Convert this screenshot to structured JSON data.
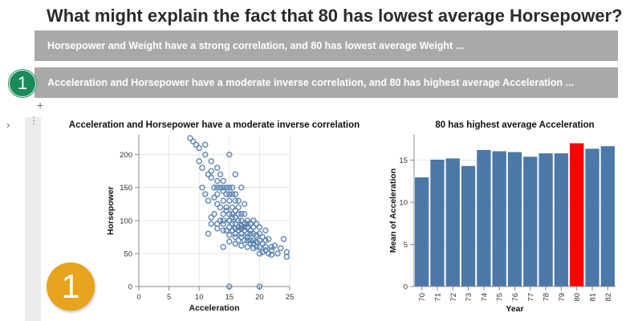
{
  "question": "What might explain the fact that 80 has lowest average Horsepower?",
  "explanations": [
    {
      "label": "Horsepower and Weight have a strong correlation, and 80 has lowest average Weight ..."
    },
    {
      "label": "Acceleration and Horsepower have a moderate inverse correlation, and 80 has highest average Acceleration ..."
    }
  ],
  "step_badge_small": "1",
  "step_badge_big": "1",
  "add_button": "+",
  "chevron": "›",
  "cell_menu": "⋮",
  "colors": {
    "mark": "#4c78a8",
    "highlight": "#ff0000",
    "explanation_bg": "#a9a9a9",
    "badge_green": "#1a8a5a",
    "badge_orange": "#e8a41c"
  },
  "chart_data": [
    {
      "type": "scatter",
      "title": "Acceleration and Horsepower have a moderate inverse correlation",
      "xlabel": "Acceleration",
      "ylabel": "Horsepower",
      "xlim": [
        0,
        25
      ],
      "ylim": [
        0,
        230
      ],
      "x_ticks": [
        0,
        5,
        10,
        15,
        20,
        25
      ],
      "y_ticks": [
        0,
        50,
        100,
        150,
        200
      ],
      "grid": true,
      "points": [
        [
          8.5,
          225
        ],
        [
          9,
          220
        ],
        [
          9.5,
          215
        ],
        [
          10,
          210
        ],
        [
          10,
          190
        ],
        [
          10.5,
          180
        ],
        [
          11,
          200
        ],
        [
          11,
          215
        ],
        [
          11.5,
          170
        ],
        [
          12,
          190
        ],
        [
          12,
          175
        ],
        [
          12,
          165
        ],
        [
          12.5,
          150
        ],
        [
          13,
          180
        ],
        [
          13,
          160
        ],
        [
          13,
          150
        ],
        [
          13,
          140
        ],
        [
          13.5,
          170
        ],
        [
          13.5,
          150
        ],
        [
          14,
          160
        ],
        [
          14,
          150
        ],
        [
          14,
          145
        ],
        [
          14,
          130
        ],
        [
          14,
          110
        ],
        [
          14.5,
          150
        ],
        [
          14.5,
          140
        ],
        [
          14.5,
          120
        ],
        [
          15,
          200
        ],
        [
          15,
          150
        ],
        [
          15,
          140
        ],
        [
          15,
          130
        ],
        [
          15,
          110
        ],
        [
          15,
          100
        ],
        [
          15,
          90
        ],
        [
          15.5,
          150
        ],
        [
          15.5,
          120
        ],
        [
          15.5,
          105
        ],
        [
          15.5,
          95
        ],
        [
          16,
          170
        ],
        [
          16,
          140
        ],
        [
          16,
          115
        ],
        [
          16,
          105
        ],
        [
          16,
          95
        ],
        [
          16,
          88
        ],
        [
          16,
          80
        ],
        [
          16.5,
          130
        ],
        [
          16.5,
          110
        ],
        [
          16.5,
          100
        ],
        [
          16.5,
          90
        ],
        [
          16.5,
          85
        ],
        [
          17,
          150
        ],
        [
          17,
          100
        ],
        [
          17,
          92
        ],
        [
          17,
          88
        ],
        [
          17,
          80
        ],
        [
          17,
          75
        ],
        [
          17.5,
          110
        ],
        [
          17.5,
          95
        ],
        [
          17.5,
          90
        ],
        [
          17.5,
          85
        ],
        [
          17.5,
          70
        ],
        [
          18,
          100
        ],
        [
          18,
          90
        ],
        [
          18,
          80
        ],
        [
          18,
          75
        ],
        [
          18,
          70
        ],
        [
          18.5,
          95
        ],
        [
          18.5,
          85
        ],
        [
          18.5,
          70
        ],
        [
          18.5,
          65
        ],
        [
          19,
          100
        ],
        [
          19,
          90
        ],
        [
          19,
          80
        ],
        [
          19,
          70
        ],
        [
          19,
          65
        ],
        [
          19.5,
          95
        ],
        [
          19.5,
          78
        ],
        [
          19.5,
          68
        ],
        [
          20,
          90
        ],
        [
          20,
          80
        ],
        [
          20,
          70
        ],
        [
          20,
          60
        ],
        [
          20.5,
          75
        ],
        [
          20.5,
          65
        ],
        [
          21,
          85
        ],
        [
          21,
          70
        ],
        [
          21,
          60
        ],
        [
          21.5,
          72
        ],
        [
          22,
          60
        ],
        [
          22,
          55
        ],
        [
          23,
          50
        ],
        [
          24.5,
          52
        ],
        [
          24.5,
          45
        ],
        [
          22,
          48
        ],
        [
          15,
          100
        ],
        [
          14,
          95
        ],
        [
          15.5,
          85
        ],
        [
          16,
          75
        ],
        [
          15,
          78
        ],
        [
          14.5,
          85
        ],
        [
          13.5,
          100
        ],
        [
          13,
          95
        ],
        [
          14,
          85
        ],
        [
          12.5,
          110
        ],
        [
          12,
          105
        ],
        [
          11.5,
          130
        ],
        [
          11,
          140
        ],
        [
          10.5,
          150
        ],
        [
          13,
          125
        ],
        [
          12.5,
          135
        ],
        [
          13.5,
          120
        ],
        [
          14.5,
          115
        ],
        [
          15.5,
          110
        ],
        [
          16.5,
          120
        ],
        [
          17,
          110
        ],
        [
          18,
          95
        ],
        [
          18.5,
          80
        ],
        [
          19,
          58
        ],
        [
          20,
          50
        ],
        [
          21,
          55
        ],
        [
          21.5,
          50
        ],
        [
          22.5,
          62
        ],
        [
          23.5,
          58
        ],
        [
          24,
          72
        ],
        [
          16,
          65
        ],
        [
          17,
          62
        ],
        [
          15,
          68
        ],
        [
          14,
          60
        ],
        [
          16.5,
          70
        ],
        [
          18,
          60
        ],
        [
          19.5,
          60
        ],
        [
          20.5,
          52
        ],
        [
          15.5,
          140
        ],
        [
          16,
          130
        ],
        [
          17.5,
          125
        ],
        [
          14,
          100
        ],
        [
          13,
          88
        ],
        [
          12,
          95
        ],
        [
          11.5,
          80
        ],
        [
          15,
          0
        ],
        [
          20,
          0
        ]
      ]
    },
    {
      "type": "bar",
      "title": "80 has highest average Acceleration",
      "xlabel": "Year",
      "ylabel": "Mean of Acceleration",
      "ylim": [
        0,
        18
      ],
      "y_ticks": [
        0,
        5,
        10,
        15
      ],
      "categories": [
        "70",
        "71",
        "72",
        "73",
        "74",
        "75",
        "76",
        "77",
        "78",
        "79",
        "80",
        "81",
        "82"
      ],
      "values": [
        12.95,
        15.05,
        15.2,
        14.3,
        16.2,
        16.05,
        15.95,
        15.4,
        15.8,
        15.8,
        17.0,
        16.35,
        16.65
      ],
      "highlight": "80",
      "grid": true
    }
  ]
}
